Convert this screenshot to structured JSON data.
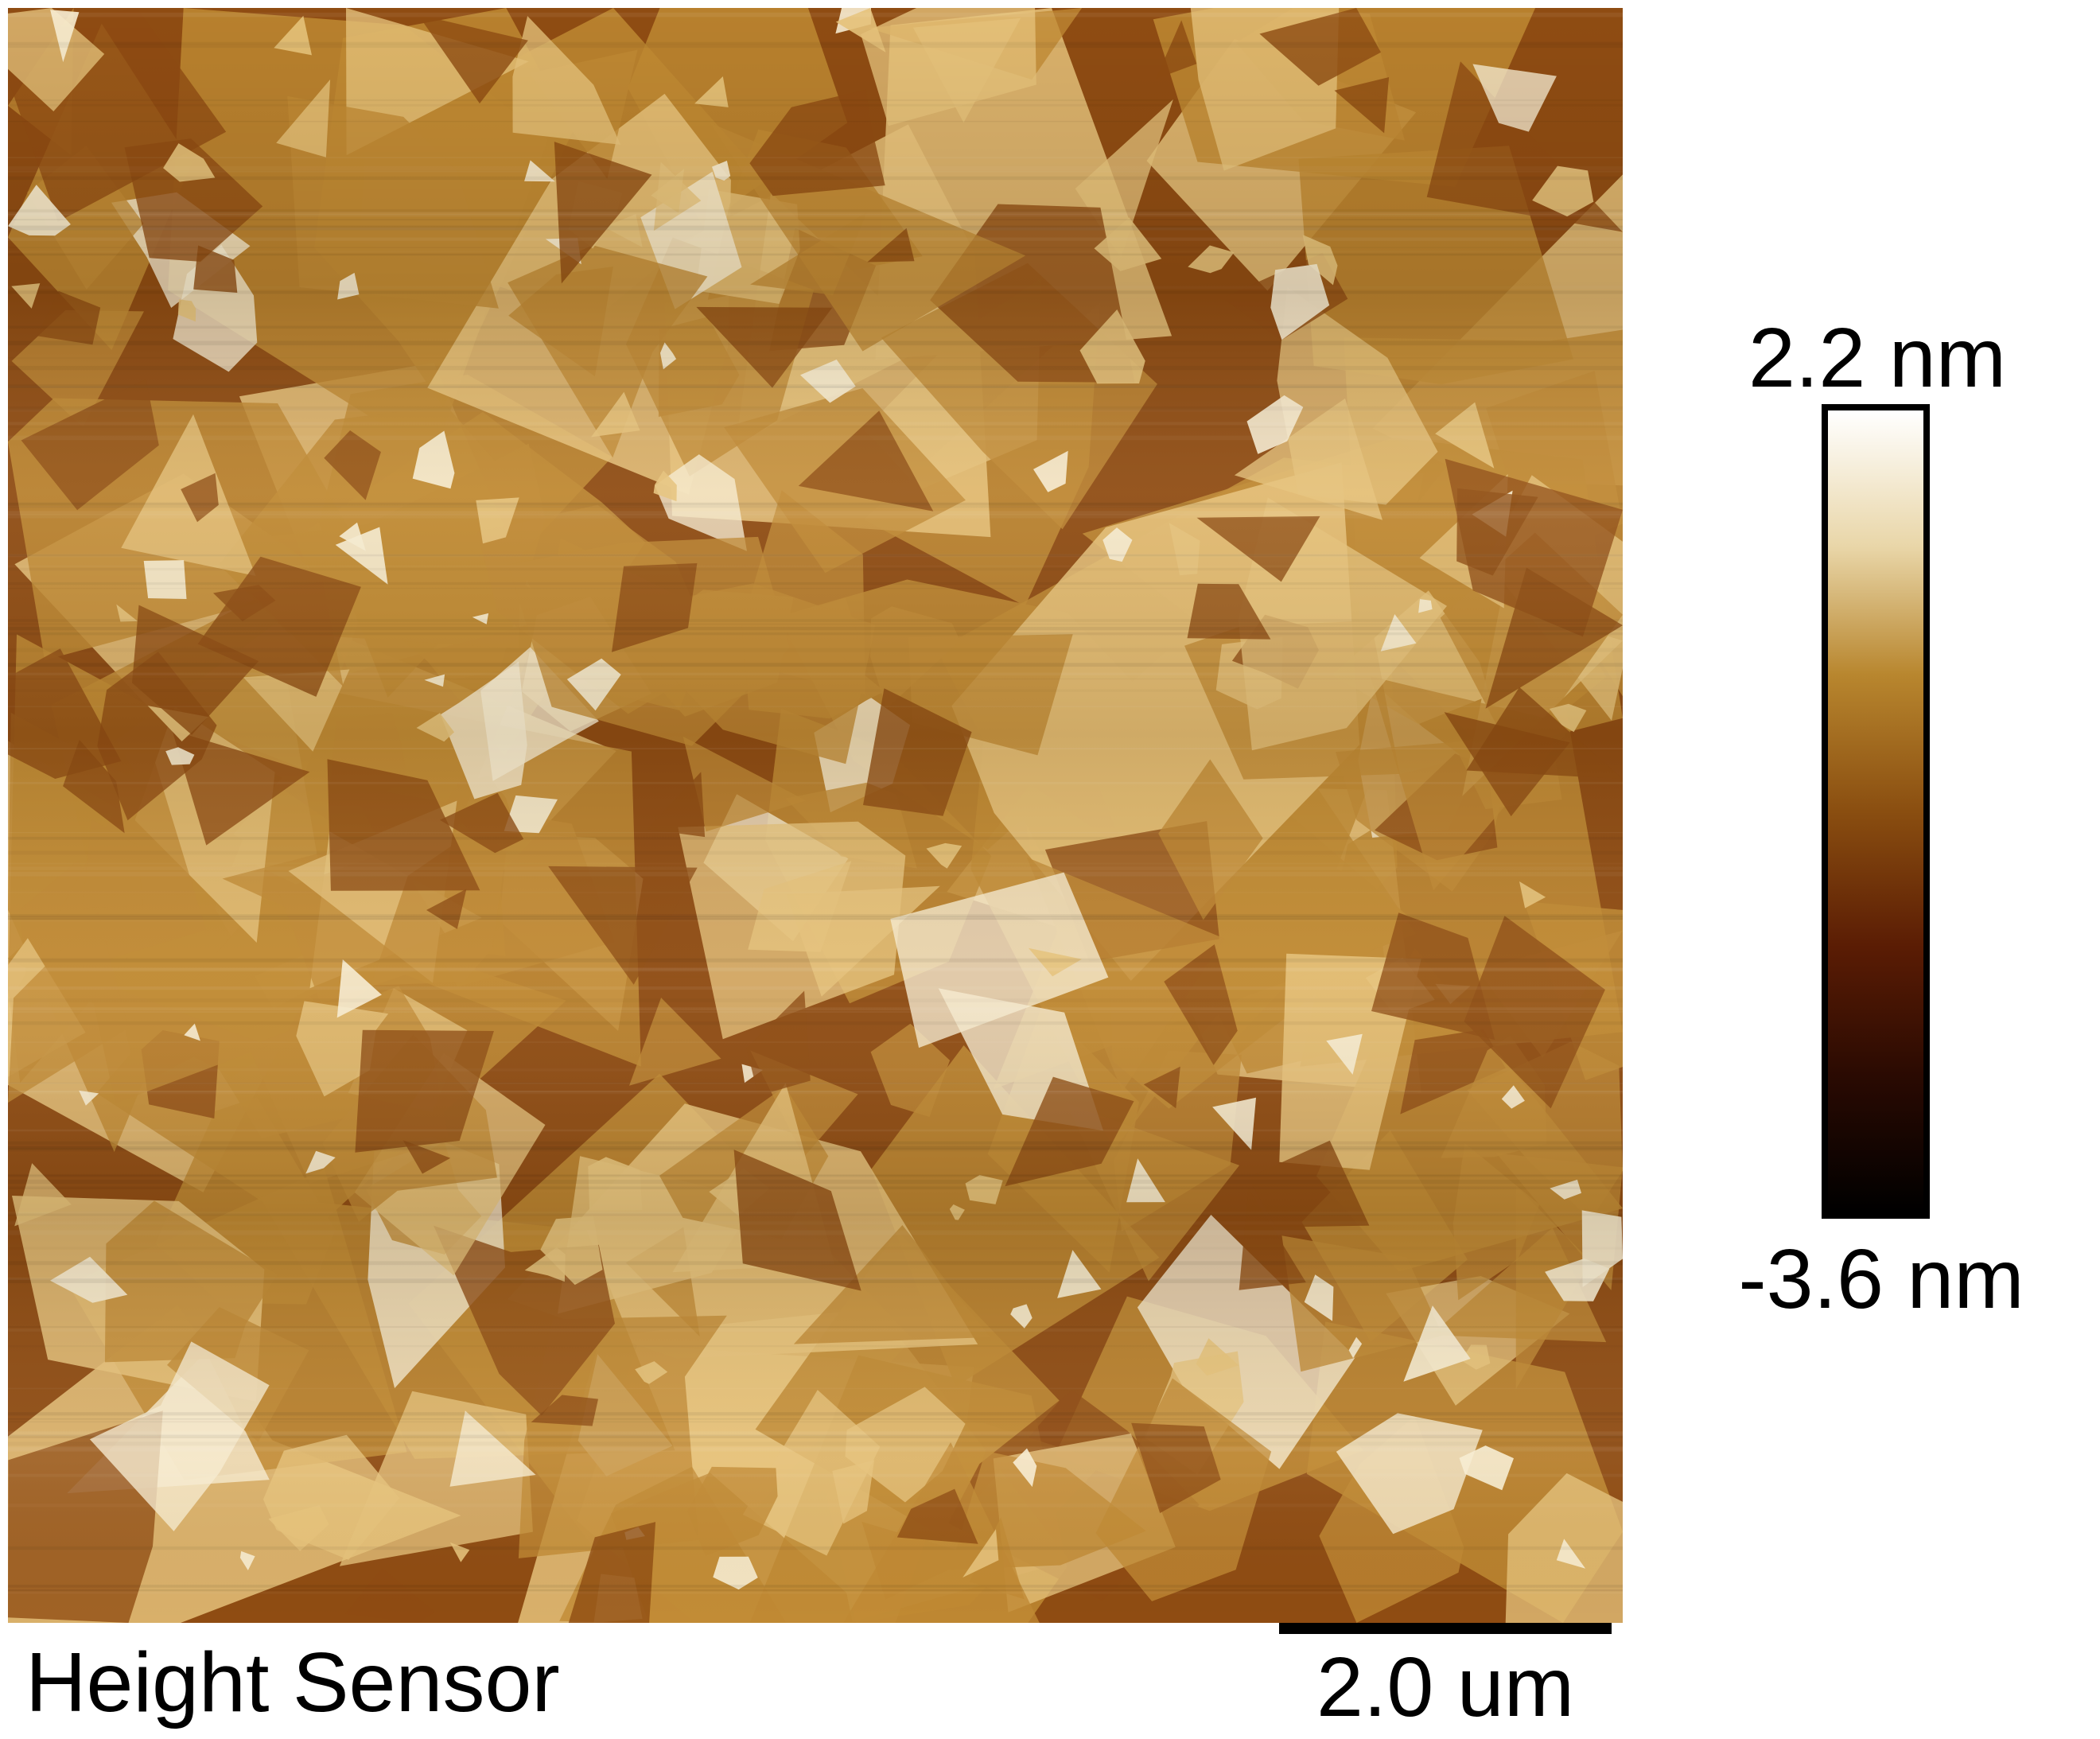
{
  "caption": {
    "channel": "Height Sensor"
  },
  "scale_bar": {
    "label": "2.0 um"
  },
  "color_scale": {
    "max_label": "2.2 nm",
    "min_label": "-3.6 nm",
    "gradient_colors": [
      "#ffffff",
      "#e9d6a8",
      "#b8862e",
      "#8a4e10",
      "#5a1c04",
      "#2a0a02",
      "#000000"
    ]
  },
  "image_palette": {
    "substrate_dark": "#8f4c12",
    "flake_mid": "#c08933",
    "flake_light": "#e6c27a",
    "flake_bright": "#f7ecd0"
  }
}
